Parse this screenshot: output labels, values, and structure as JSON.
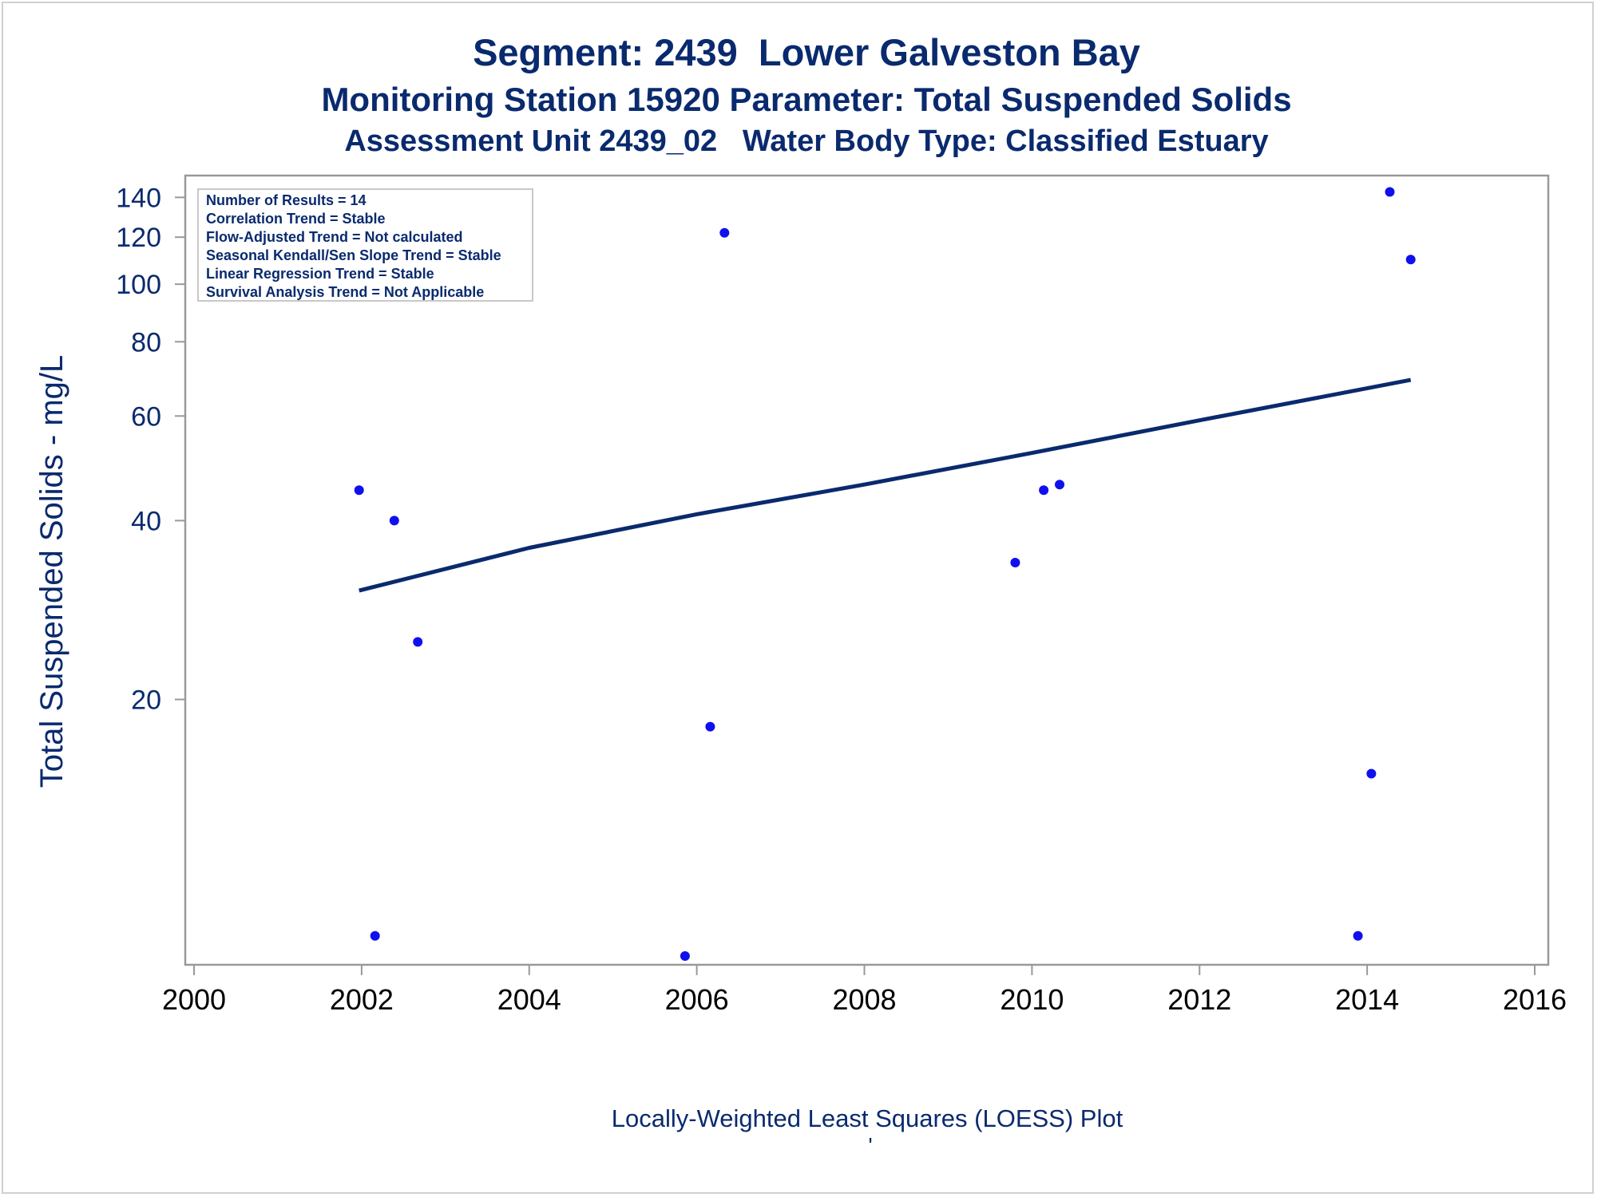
{
  "title": {
    "line1": "Segment: 2439  Lower Galveston Bay",
    "line2": "Monitoring Station 15920 Parameter: Total Suspended Solids",
    "line3": "Assessment Unit 2439_02   Water Body Type: Classified Estuary"
  },
  "stats_box": {
    "lines": [
      "Number of Results = 14",
      "Correlation Trend = Stable",
      "Flow-Adjusted Trend = Not calculated",
      "Seasonal Kendall/Sen Slope Trend = Stable",
      "Linear Regression Trend = Stable",
      "Survival Analysis Trend = Not Applicable"
    ]
  },
  "footnote": {
    "text": "Locally-Weighted Least Squares (LOESS) Plot",
    "mark": "'"
  },
  "colors": {
    "title": "#0a2a6e",
    "points": "#1010ee",
    "trend_line": "#0a2a6e",
    "axis": "#999999"
  },
  "chart_data": {
    "type": "scatter",
    "title": "",
    "xlabel": "",
    "ylabel": "Total Suspended Solids - mg/L",
    "x_scale": "linear",
    "y_scale": "log",
    "xlim": [
      2000,
      2016
    ],
    "ylim": [
      7.4,
      145
    ],
    "x_ticks": [
      2000,
      2002,
      2004,
      2006,
      2008,
      2010,
      2012,
      2014,
      2016
    ],
    "y_ticks": [
      20,
      40,
      60,
      80,
      100,
      120,
      140
    ],
    "grid": false,
    "legend": "none",
    "series": [
      {
        "kind": "points",
        "x": [
          2001.97,
          2002.16,
          2002.39,
          2002.67,
          2005.86,
          2006.16,
          2006.33,
          2009.8,
          2010.14,
          2010.33,
          2013.89,
          2014.05,
          2014.27,
          2014.52
        ],
        "y": [
          45,
          8,
          40,
          25,
          7.4,
          18,
          122,
          34,
          45,
          46,
          8,
          15,
          143,
          110
        ]
      },
      {
        "kind": "loess",
        "x": [
          2001.97,
          2004,
          2006,
          2008,
          2010,
          2012,
          2014.52
        ],
        "y": [
          30.5,
          36,
          41,
          46,
          52,
          59,
          69
        ]
      }
    ]
  }
}
